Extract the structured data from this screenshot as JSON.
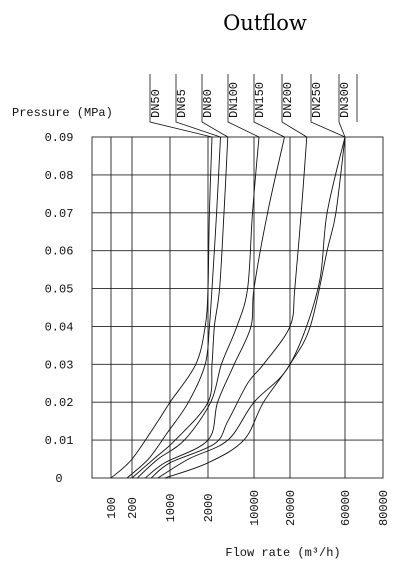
{
  "chart_data": {
    "type": "line",
    "title": "Outflow",
    "ylabel": "Pressure (MPa)",
    "xlabel": "Flow rate (m³/h)",
    "x_ticks": [
      "100",
      "200",
      "1000",
      "2000",
      "10000",
      "20000",
      "60000",
      "80000"
    ],
    "y_ticks": [
      "0",
      "0.01",
      "0.02",
      "0.03",
      "0.04",
      "0.05",
      "0.06",
      "0.07",
      "0.08",
      "0.09"
    ],
    "ylim": [
      0,
      0.09
    ],
    "grid": true,
    "x_scale": "categorical-log",
    "series": [
      {
        "name": "DN50",
        "points": [
          [
            100,
            0
          ],
          [
            200,
            0.005
          ],
          [
            600,
            0.015
          ],
          [
            1000,
            0.02
          ],
          [
            1600,
            0.03
          ],
          [
            1900,
            0.04
          ],
          [
            2000,
            0.05
          ],
          [
            2100,
            0.07
          ],
          [
            2300,
            0.09
          ]
        ]
      },
      {
        "name": "DN65",
        "points": [
          [
            170,
            0
          ],
          [
            400,
            0.005
          ],
          [
            900,
            0.012
          ],
          [
            1400,
            0.02
          ],
          [
            1900,
            0.03
          ],
          [
            2100,
            0.04
          ],
          [
            2300,
            0.05
          ],
          [
            2700,
            0.07
          ],
          [
            3100,
            0.09
          ]
        ]
      },
      {
        "name": "DN80",
        "points": [
          [
            200,
            0
          ],
          [
            500,
            0.005
          ],
          [
            1100,
            0.01
          ],
          [
            2000,
            0.02
          ],
          [
            2300,
            0.03
          ],
          [
            2500,
            0.04
          ],
          [
            3000,
            0.05
          ],
          [
            3500,
            0.07
          ],
          [
            4000,
            0.09
          ]
        ]
      },
      {
        "name": "DN100",
        "points": [
          [
            250,
            0
          ],
          [
            600,
            0.005
          ],
          [
            1300,
            0.01
          ],
          [
            2200,
            0.02
          ],
          [
            3200,
            0.03
          ],
          [
            5500,
            0.04
          ],
          [
            8000,
            0.05
          ],
          [
            9500,
            0.07
          ],
          [
            11000,
            0.09
          ]
        ]
      },
      {
        "name": "DN150",
        "points": [
          [
            350,
            0
          ],
          [
            800,
            0.004
          ],
          [
            2000,
            0.01
          ],
          [
            2800,
            0.02
          ],
          [
            5000,
            0.03
          ],
          [
            9000,
            0.04
          ],
          [
            10000,
            0.05
          ],
          [
            13000,
            0.07
          ],
          [
            18000,
            0.09
          ]
        ]
      },
      {
        "name": "DN200",
        "points": [
          [
            450,
            0
          ],
          [
            1000,
            0.004
          ],
          [
            2500,
            0.009
          ],
          [
            4000,
            0.015
          ],
          [
            8000,
            0.025
          ],
          [
            12000,
            0.03
          ],
          [
            20000,
            0.04
          ],
          [
            22000,
            0.05
          ],
          [
            25000,
            0.07
          ],
          [
            28000,
            0.09
          ]
        ]
      },
      {
        "name": "DN250",
        "points": [
          [
            600,
            0
          ],
          [
            1400,
            0.005
          ],
          [
            4000,
            0.01
          ],
          [
            10000,
            0.02
          ],
          [
            20000,
            0.03
          ],
          [
            35000,
            0.05
          ],
          [
            42000,
            0.07
          ],
          [
            60000,
            0.09
          ]
        ]
      },
      {
        "name": "DN300",
        "points": [
          [
            800,
            0
          ],
          [
            2000,
            0.004
          ],
          [
            7000,
            0.01
          ],
          [
            12000,
            0.02
          ],
          [
            20000,
            0.03
          ],
          [
            30000,
            0.04
          ],
          [
            42000,
            0.06
          ],
          [
            50000,
            0.07
          ],
          [
            60000,
            0.09
          ]
        ]
      }
    ]
  }
}
